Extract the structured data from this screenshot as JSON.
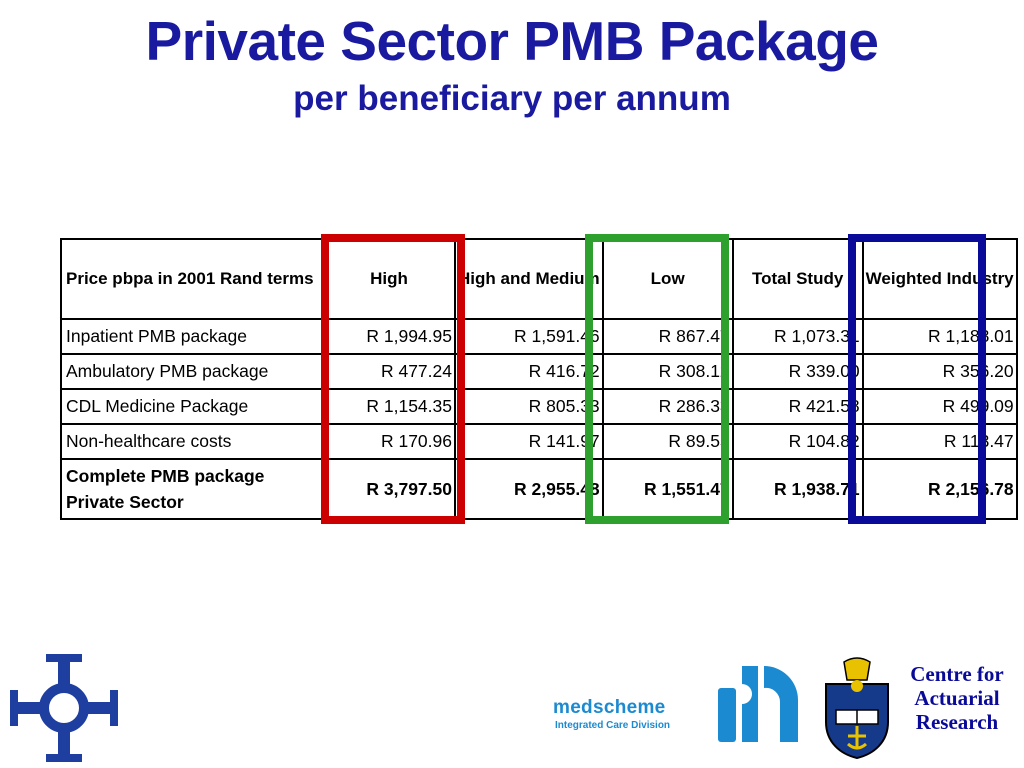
{
  "slide": {
    "title": "Private Sector PMB Package",
    "subtitle": "per beneficiary per annum"
  },
  "table": {
    "headers": [
      "Price pbpa in 2001 Rand terms",
      "High",
      "High and Medium",
      "Low",
      "Total Study",
      "Weighted Industry"
    ],
    "rows": [
      {
        "label": "Inpatient PMB package",
        "values": [
          "R 1,994.95",
          "R 1,591.46",
          "R 867.47",
          "R 1,073.31",
          "R 1,188.01"
        ]
      },
      {
        "label": "Ambulatory PMB package",
        "values": [
          "R 477.24",
          "R 416.72",
          "R 308.12",
          "R 339.00",
          "R 356.20"
        ]
      },
      {
        "label": "CDL Medicine Package",
        "values": [
          "R 1,154.35",
          "R 805.33",
          "R 286.33",
          "R 421.58",
          "R 499.09"
        ]
      },
      {
        "label": "Non-healthcare costs",
        "values": [
          "R 170.96",
          "R 141.97",
          "R 89.55",
          "R 104.82",
          "R 113.47"
        ]
      }
    ],
    "total": {
      "label": "Complete PMB package Private Sector",
      "values": [
        "R 3,797.50",
        "R 2,955.48",
        "R 1,551.47",
        "R 1,938.71",
        "R 2,156.78"
      ]
    }
  },
  "highlights": [
    {
      "column": "High",
      "color": "#cc0000"
    },
    {
      "column": "Low",
      "color": "#2ea02e"
    },
    {
      "column": "Weighted Industry",
      "color": "#0a0a99"
    }
  ],
  "logos": {
    "medscheme_name": "medscheme",
    "medscheme_division": "Integrated Care Division",
    "car_text": "Centre for Actuarial Research",
    "cross_logo_icon": "interlocking-cross-logo-icon",
    "crest_icon": "university-crest-icon"
  },
  "colors": {
    "title": "#1a1aa0",
    "medscheme": "#1c8ad0",
    "car": "#0a0a99"
  }
}
